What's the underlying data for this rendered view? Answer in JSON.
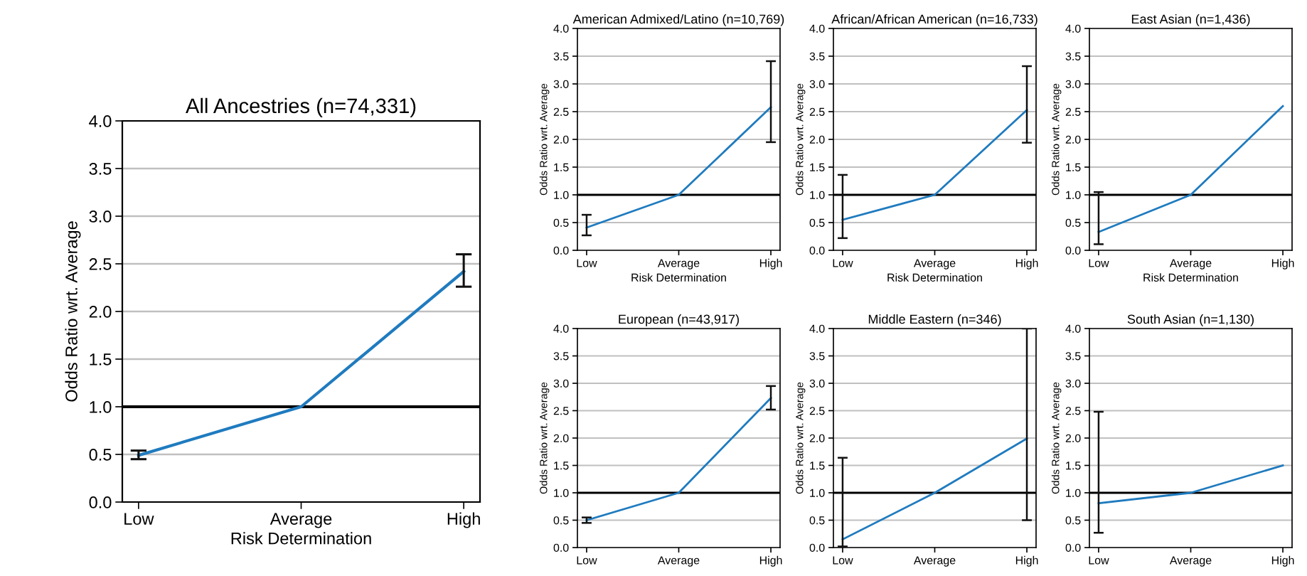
{
  "chart_data": [
    {
      "type": "line",
      "title": "All Ancestries (n=74,331)",
      "xlabel": "Risk Determination",
      "ylabel": "Odds Ratio wrt. Average",
      "categories": [
        "Low",
        "Average",
        "High"
      ],
      "series": [
        {
          "color": "#1f7bbf",
          "values": [
            0.49,
            1.0,
            2.42
          ],
          "errors": [
            [
              0.45,
              0.54
            ],
            null,
            [
              2.26,
              2.6
            ]
          ]
        }
      ],
      "ylim": [
        0,
        4
      ],
      "yticks": [
        {
          "value": 0,
          "label": "0.0"
        },
        {
          "value": 0.5,
          "label": "0.5"
        },
        {
          "value": 1,
          "label": "1.0"
        },
        {
          "value": 1.5,
          "label": "1.5"
        },
        {
          "value": 2,
          "label": "2.0"
        },
        {
          "value": 2.5,
          "label": "2.5"
        },
        {
          "value": 3,
          "label": "3.0"
        },
        {
          "value": 3.5,
          "label": "3.5"
        },
        {
          "value": 4,
          "label": "4.0"
        }
      ],
      "ref_lines": [
        {
          "axis": "y",
          "value": 1,
          "color": "#000000"
        }
      ],
      "grid": "y",
      "marker": "none"
    },
    {
      "type": "line",
      "title": "American Admixed/Latino (n=10,769)",
      "xlabel": "Risk Determination",
      "ylabel": "Odds Ratio wrt. Average",
      "categories": [
        "Low",
        "Average",
        "High"
      ],
      "series": [
        {
          "color": "#1f7bbf",
          "values": [
            0.41,
            1.0,
            2.58
          ],
          "errors": [
            [
              0.27,
              0.64
            ],
            null,
            [
              1.95,
              3.41
            ]
          ]
        }
      ],
      "ylim": [
        0,
        4
      ],
      "yticks": [
        {
          "value": 0,
          "label": "0.0"
        },
        {
          "value": 0.5,
          "label": "0.5"
        },
        {
          "value": 1,
          "label": "1.0"
        },
        {
          "value": 1.5,
          "label": "1.5"
        },
        {
          "value": 2,
          "label": "2.0"
        },
        {
          "value": 2.5,
          "label": "2.5"
        },
        {
          "value": 3,
          "label": "3.0"
        },
        {
          "value": 3.5,
          "label": "3.5"
        },
        {
          "value": 4,
          "label": "4.0"
        }
      ],
      "ref_lines": [
        {
          "axis": "y",
          "value": 1,
          "color": "#000000"
        }
      ],
      "grid": "y",
      "marker": "none"
    },
    {
      "type": "line",
      "title": "African/African American (n=16,733)",
      "xlabel": "Risk Determination",
      "ylabel": "Odds Ratio wrt. Average",
      "categories": [
        "Low",
        "Average",
        "High"
      ],
      "series": [
        {
          "color": "#1f7bbf",
          "values": [
            0.55,
            1.0,
            2.53
          ],
          "errors": [
            [
              0.22,
              1.36
            ],
            null,
            [
              1.94,
              3.32
            ]
          ]
        }
      ],
      "ylim": [
        0,
        4
      ],
      "yticks": [
        {
          "value": 0,
          "label": "0.0"
        },
        {
          "value": 0.5,
          "label": "0.5"
        },
        {
          "value": 1,
          "label": "1.0"
        },
        {
          "value": 1.5,
          "label": "1.5"
        },
        {
          "value": 2,
          "label": "2.0"
        },
        {
          "value": 2.5,
          "label": "2.5"
        },
        {
          "value": 3,
          "label": "3.0"
        },
        {
          "value": 3.5,
          "label": "3.5"
        },
        {
          "value": 4,
          "label": "4.0"
        }
      ],
      "ref_lines": [
        {
          "axis": "y",
          "value": 1,
          "color": "#000000"
        }
      ],
      "grid": "y",
      "marker": "none"
    },
    {
      "type": "line",
      "title": "East Asian (n=1,436)",
      "xlabel": "Risk Determination",
      "ylabel": "Odds Ratio wrt. Average",
      "categories": [
        "Low",
        "Average",
        "High"
      ],
      "series": [
        {
          "color": "#1f7bbf",
          "values": [
            0.33,
            1.0,
            2.6
          ],
          "errors": [
            [
              0.11,
              1.05
            ],
            null,
            null
          ]
        }
      ],
      "ylim": [
        0,
        4
      ],
      "yticks": [
        {
          "value": 0,
          "label": "0.0"
        },
        {
          "value": 0.5,
          "label": "0.5"
        },
        {
          "value": 1,
          "label": "1.0"
        },
        {
          "value": 1.5,
          "label": "1.5"
        },
        {
          "value": 2,
          "label": "2.0"
        },
        {
          "value": 2.5,
          "label": "2.5"
        },
        {
          "value": 3,
          "label": "3.0"
        },
        {
          "value": 3.5,
          "label": "3.5"
        },
        {
          "value": 4,
          "label": "4.0"
        }
      ],
      "ref_lines": [
        {
          "axis": "y",
          "value": 1,
          "color": "#000000"
        }
      ],
      "grid": "y",
      "marker": "none"
    },
    {
      "type": "line",
      "title": "European (n=43,917)",
      "ylabel": "Odds Ratio wrt. Average",
      "categories": [
        "Low",
        "Average",
        "High"
      ],
      "series": [
        {
          "color": "#1f7bbf",
          "values": [
            0.5,
            1.0,
            2.73
          ],
          "errors": [
            [
              0.45,
              0.55
            ],
            null,
            [
              2.52,
              2.95
            ]
          ]
        }
      ],
      "ylim": [
        0,
        4
      ],
      "yticks": [
        {
          "value": 0,
          "label": "0.0"
        },
        {
          "value": 0.5,
          "label": "0.5"
        },
        {
          "value": 1,
          "label": "1.0"
        },
        {
          "value": 1.5,
          "label": "1.5"
        },
        {
          "value": 2,
          "label": "2.0"
        },
        {
          "value": 2.5,
          "label": "2.5"
        },
        {
          "value": 3,
          "label": "3.0"
        },
        {
          "value": 3.5,
          "label": "3.5"
        },
        {
          "value": 4,
          "label": "4.0"
        }
      ],
      "ref_lines": [
        {
          "axis": "y",
          "value": 1,
          "color": "#000000"
        }
      ],
      "grid": "y",
      "marker": "none"
    },
    {
      "type": "line",
      "title": "Middle Eastern (n=346)",
      "ylabel": "Odds Ratio wrt. Average",
      "categories": [
        "Low",
        "Average",
        "High"
      ],
      "series": [
        {
          "color": "#1f7bbf",
          "values": [
            0.15,
            1.0,
            1.99
          ],
          "errors": [
            [
              0.02,
              1.64
            ],
            null,
            [
              0.5,
              4.0
            ]
          ]
        }
      ],
      "ylim": [
        0,
        4
      ],
      "yticks": [
        {
          "value": 0,
          "label": "0.0"
        },
        {
          "value": 0.5,
          "label": "0.5"
        },
        {
          "value": 1,
          "label": "1.0"
        },
        {
          "value": 1.5,
          "label": "1.5"
        },
        {
          "value": 2,
          "label": "2.0"
        },
        {
          "value": 2.5,
          "label": "2.5"
        },
        {
          "value": 3,
          "label": "3.0"
        },
        {
          "value": 3.5,
          "label": "3.5"
        },
        {
          "value": 4,
          "label": "4.0"
        }
      ],
      "ref_lines": [
        {
          "axis": "y",
          "value": 1,
          "color": "#000000"
        }
      ],
      "grid": "y",
      "marker": "none"
    },
    {
      "type": "line",
      "title": "South Asian (n=1,130)",
      "ylabel": "Odds Ratio wrt. Average",
      "categories": [
        "Low",
        "Average",
        "High"
      ],
      "series": [
        {
          "color": "#1f7bbf",
          "values": [
            0.81,
            1.0,
            1.5
          ],
          "errors": [
            [
              0.27,
              2.48
            ],
            null,
            null
          ]
        }
      ],
      "ylim": [
        0,
        4
      ],
      "yticks": [
        {
          "value": 0,
          "label": "0.0"
        },
        {
          "value": 0.5,
          "label": "0.5"
        },
        {
          "value": 1,
          "label": "1.0"
        },
        {
          "value": 1.5,
          "label": "1.5"
        },
        {
          "value": 2,
          "label": "2.0"
        },
        {
          "value": 2.5,
          "label": "2.5"
        },
        {
          "value": 3,
          "label": "3.0"
        },
        {
          "value": 3.5,
          "label": "3.5"
        },
        {
          "value": 4,
          "label": "4.0"
        }
      ],
      "ref_lines": [
        {
          "axis": "y",
          "value": 1,
          "color": "#000000"
        }
      ],
      "grid": "y",
      "marker": "none"
    }
  ]
}
